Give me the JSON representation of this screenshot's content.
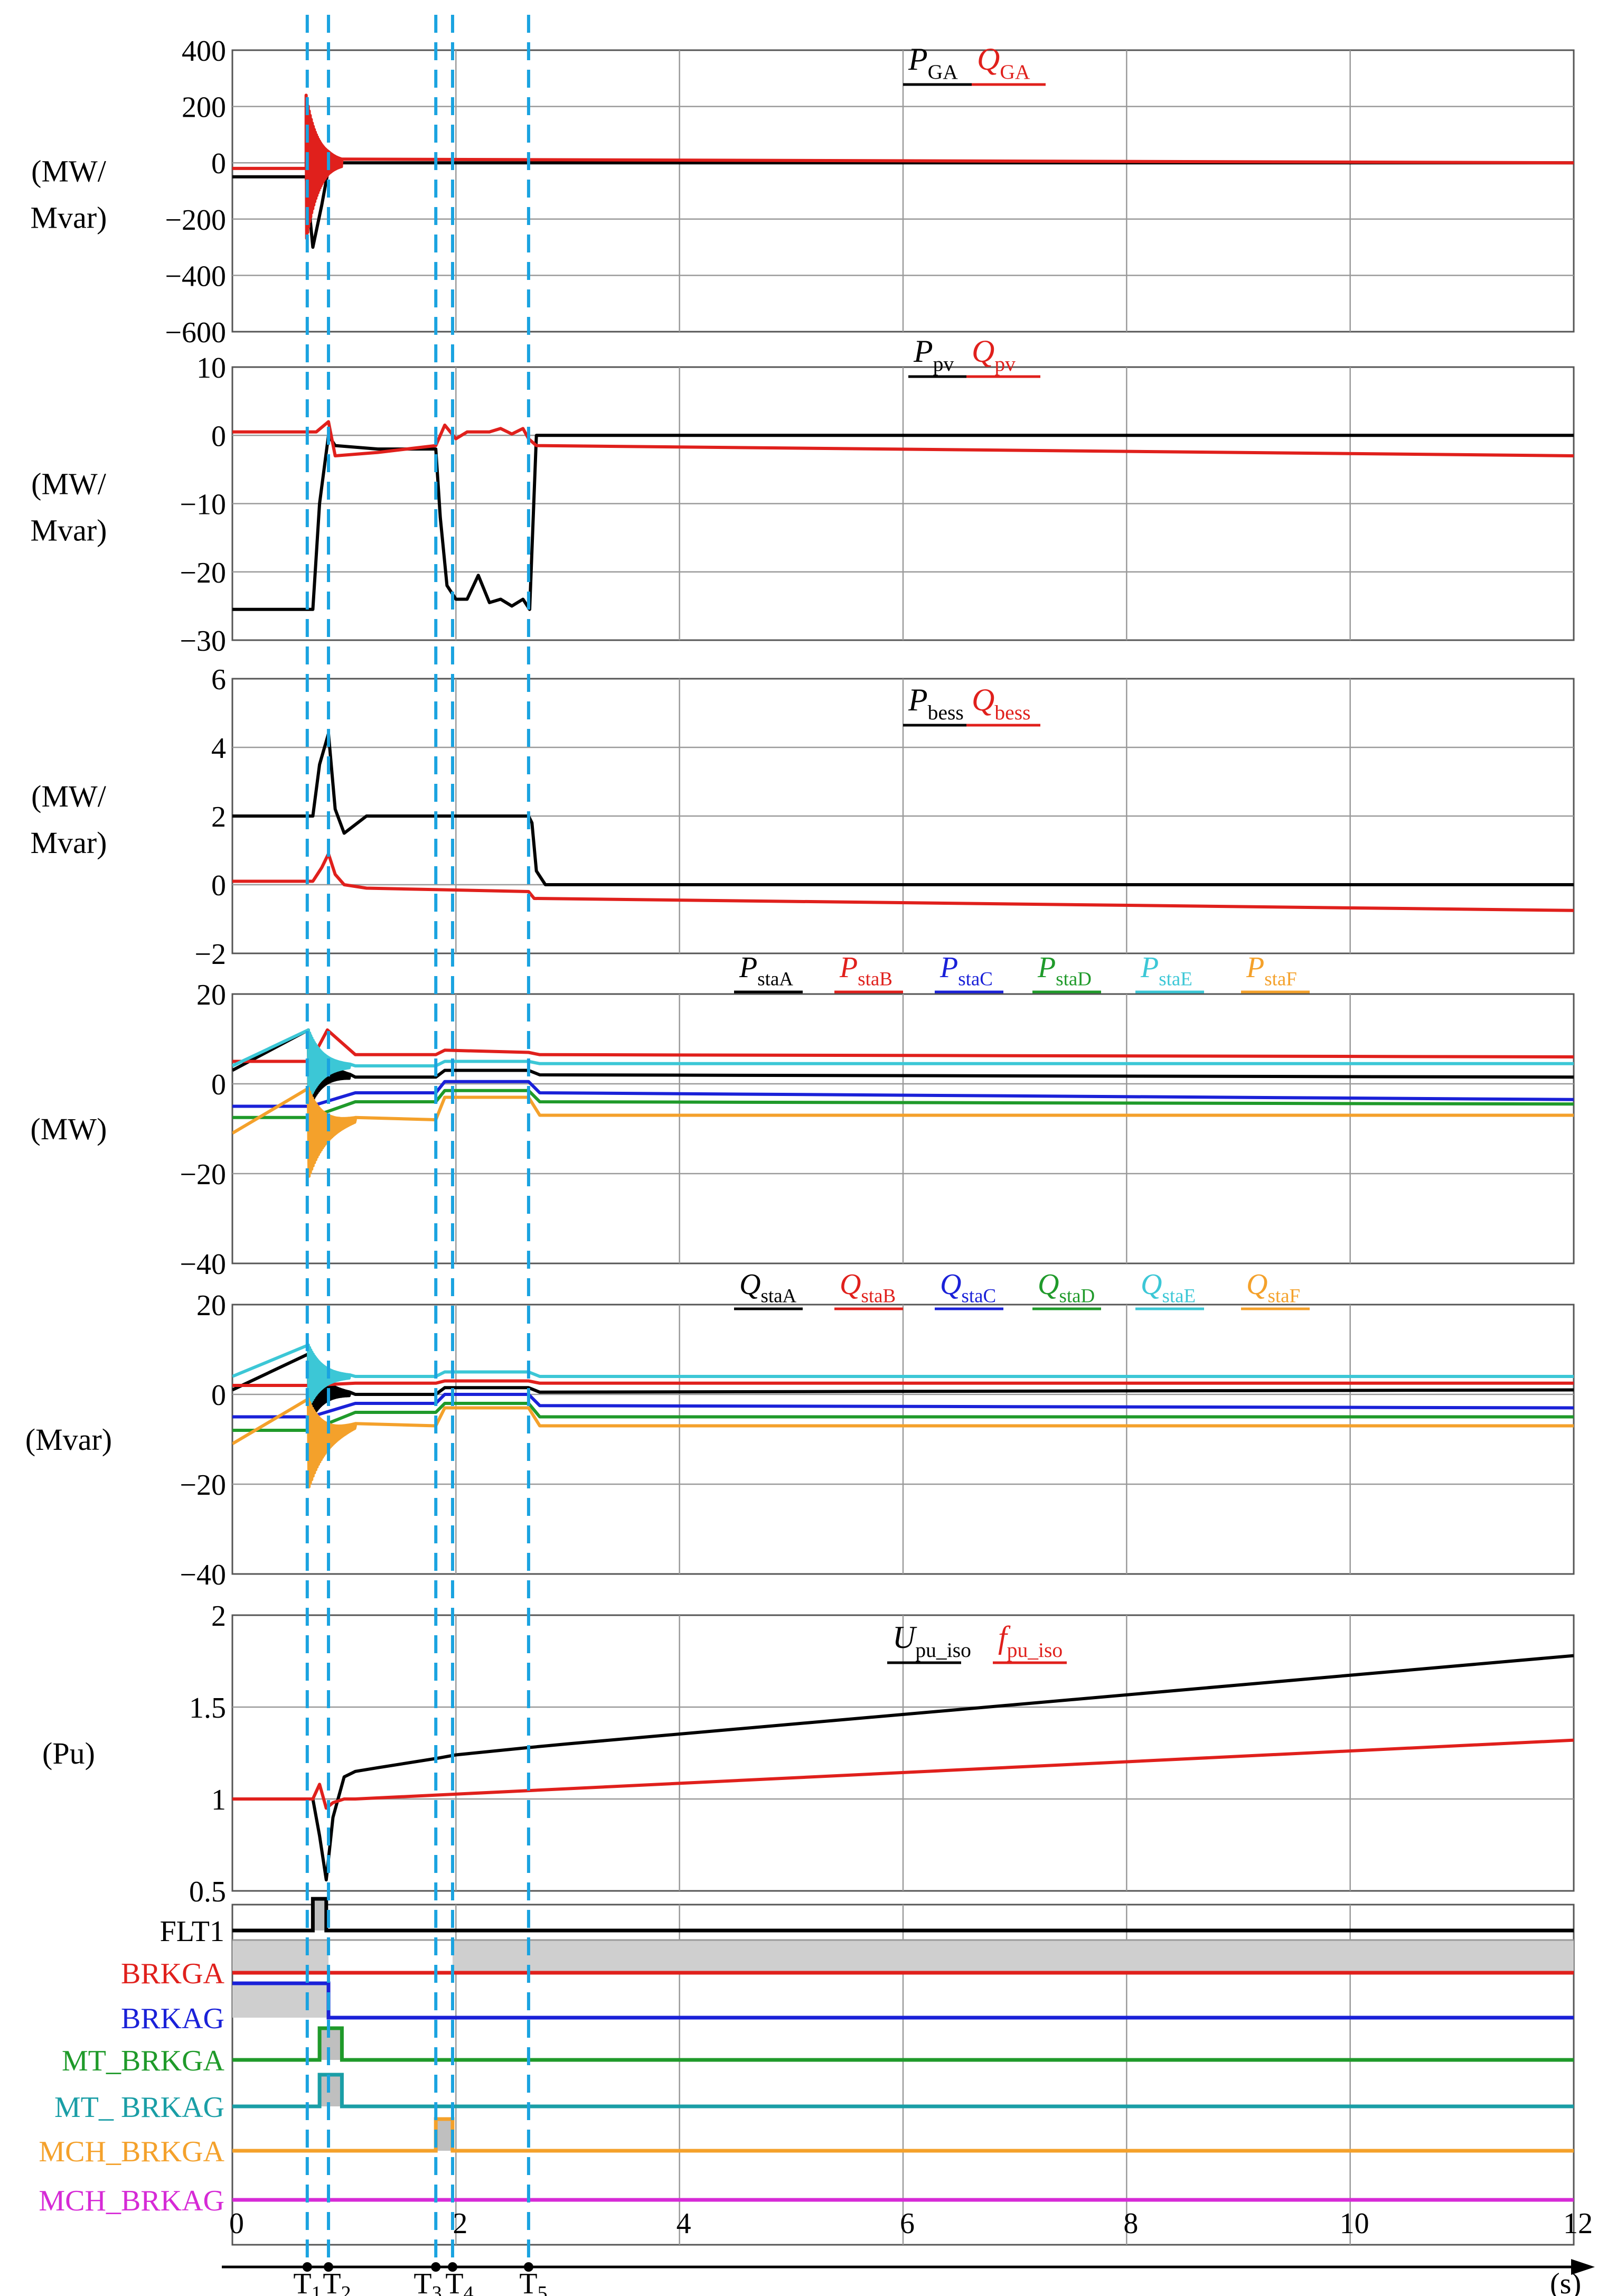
{
  "chart_data": {
    "type": "line",
    "x_axis": {
      "xlim": [
        0,
        12
      ],
      "ticks": [
        0,
        2,
        4,
        6,
        8,
        10,
        12
      ],
      "tick_labels": [
        "0",
        "2",
        "4",
        "6",
        "8",
        "10",
        "12"
      ],
      "unit_label": "(s)",
      "events": [
        {
          "name": "T1",
          "label": "T",
          "sub": "1",
          "x": 0.67
        },
        {
          "name": "T2",
          "label": "T",
          "sub": "2",
          "x": 0.86
        },
        {
          "name": "T3",
          "label": "T",
          "sub": "3",
          "x": 1.82
        },
        {
          "name": "T4",
          "label": "T",
          "sub": "4",
          "x": 1.97
        },
        {
          "name": "T5",
          "label": "T",
          "sub": "5",
          "x": 2.65
        }
      ]
    },
    "panels": [
      {
        "id": "grid-power",
        "ylabel": [
          "(MW/",
          "Mvar)"
        ],
        "ylim": [
          -600,
          400
        ],
        "yticks": [
          400,
          200,
          0,
          -200,
          -400,
          -600
        ],
        "ytick_labels": [
          "400",
          "200",
          "0",
          "−200",
          "−400",
          "−600"
        ],
        "series": [
          {
            "name": "P_GA",
            "label": "P",
            "sub": "GA",
            "italic": true,
            "color": "#000000",
            "x": [
              0,
              0.66,
              0.72,
              0.8,
              0.86,
              0.9,
              12
            ],
            "y": [
              -50,
              -50,
              -300,
              -150,
              -20,
              0,
              0
            ]
          },
          {
            "name": "Q_GA",
            "label": "Q",
            "sub": "GA",
            "italic": true,
            "color": "#e0201c",
            "x": [
              0,
              0.66,
              0.86,
              0.9,
              12
            ],
            "y": [
              -20,
              -20,
              0,
              0,
              0
            ],
            "osc": {
              "from": 0.66,
              "to": 0.98,
              "amp": 260
            }
          }
        ]
      },
      {
        "id": "pv-power",
        "ylabel": [
          "(MW/",
          "Mvar)"
        ],
        "ylim": [
          -30,
          10
        ],
        "yticks": [
          10,
          0,
          -10,
          -20,
          -30
        ],
        "ytick_labels": [
          "10",
          "0",
          "−10",
          "−20",
          "−30"
        ],
        "series": [
          {
            "name": "P_pv",
            "label": "P",
            "sub": "pv",
            "italic": true,
            "color": "#000000",
            "x": [
              0,
              0.72,
              0.78,
              0.86,
              0.92,
              1.3,
              1.82,
              1.86,
              1.92,
              2.0,
              2.1,
              2.2,
              2.3,
              2.4,
              2.5,
              2.6,
              2.66,
              2.72,
              12
            ],
            "y": [
              -25.5,
              -25.5,
              -10,
              0,
              -1.5,
              -2,
              -2,
              -12,
              -22,
              -24,
              -24,
              -20.5,
              -24.5,
              -24,
              -25,
              -24,
              -25.5,
              0,
              0
            ]
          },
          {
            "name": "Q_pv",
            "label": "Q",
            "sub": "pv",
            "italic": true,
            "color": "#e0201c",
            "x": [
              0,
              0.75,
              0.86,
              0.92,
              1.3,
              1.82,
              1.9,
              2.0,
              2.1,
              2.2,
              2.3,
              2.4,
              2.5,
              2.6,
              2.65,
              2.72,
              12
            ],
            "y": [
              0.5,
              0.5,
              2,
              -3,
              -2.5,
              -1.5,
              1.5,
              -0.5,
              0.5,
              0.5,
              0.5,
              1,
              0.2,
              1,
              -0.5,
              -1.5,
              -3
            ]
          }
        ]
      },
      {
        "id": "bess-power",
        "ylabel": [
          "(MW/",
          "Mvar)"
        ],
        "ylim": [
          -2,
          6
        ],
        "yticks": [
          6,
          4,
          2,
          0,
          -2
        ],
        "ytick_labels": [
          "6",
          "4",
          "2",
          "0",
          "−2"
        ],
        "series": [
          {
            "name": "P_bess",
            "label": "P",
            "sub": "bess",
            "italic": true,
            "color": "#000000",
            "x": [
              0,
              0.72,
              0.78,
              0.86,
              0.92,
              1.0,
              1.2,
              2.65,
              2.68,
              2.72,
              2.8,
              12
            ],
            "y": [
              2,
              2,
              3.5,
              4.4,
              2.2,
              1.5,
              2,
              2,
              1.8,
              0.4,
              0,
              0
            ]
          },
          {
            "name": "Q_bess",
            "label": "Q",
            "sub": "bess",
            "italic": true,
            "color": "#e0201c",
            "x": [
              0,
              0.72,
              0.8,
              0.86,
              0.92,
              1.0,
              1.2,
              2.65,
              2.7,
              12
            ],
            "y": [
              0.1,
              0.1,
              0.5,
              0.9,
              0.3,
              0,
              -0.1,
              -0.2,
              -0.4,
              -0.75
            ]
          }
        ]
      },
      {
        "id": "station-active-power",
        "ylabel": [
          "(MW)"
        ],
        "ylim": [
          -40,
          20
        ],
        "yticks": [
          20,
          0,
          -20,
          -40
        ],
        "ytick_labels": [
          "20",
          "0",
          "−20",
          "−40"
        ],
        "series": [
          {
            "name": "P_staA",
            "label": "P",
            "sub": "staA",
            "italic": true,
            "color": "#000000",
            "x": [
              0,
              0.7,
              1.1,
              1.82,
              1.9,
              2.65,
              2.75,
              12
            ],
            "y": [
              3,
              3,
              1.5,
              1.5,
              3,
              3,
              2,
              1.5
            ],
            "osc": {
              "from": 0.68,
              "to": 1.05,
              "amp": 9
            }
          },
          {
            "name": "P_staB",
            "label": "P",
            "sub": "staB",
            "italic": true,
            "color": "#e0201c",
            "x": [
              0,
              0.7,
              0.85,
              1.1,
              1.82,
              1.9,
              2.65,
              2.75,
              12
            ],
            "y": [
              5,
              5,
              12,
              6.5,
              6.5,
              7.5,
              7,
              6.5,
              6
            ]
          },
          {
            "name": "P_staC",
            "label": "P",
            "sub": "staC",
            "italic": true,
            "color": "#1a21d8",
            "x": [
              0,
              0.7,
              1.1,
              1.82,
              1.9,
              2.65,
              2.75,
              12
            ],
            "y": [
              -5,
              -5,
              -2,
              -2,
              0.5,
              0.5,
              -2,
              -3.5
            ]
          },
          {
            "name": "P_staD",
            "label": "P",
            "sub": "staD",
            "italic": true,
            "color": "#1f9a2a",
            "x": [
              0,
              0.7,
              1.1,
              1.82,
              1.9,
              2.65,
              2.75,
              12
            ],
            "y": [
              -7.5,
              -7.5,
              -4,
              -4,
              -1.5,
              -1.5,
              -4,
              -4.5
            ]
          },
          {
            "name": "P_staE",
            "label": "P",
            "sub": "staE",
            "italic": true,
            "color": "#3cc7d6",
            "x": [
              0,
              0.7,
              1.1,
              1.82,
              1.9,
              2.65,
              2.75,
              12
            ],
            "y": [
              4,
              4,
              4,
              4,
              5,
              5,
              4.5,
              4.5
            ],
            "osc": {
              "from": 0.68,
              "to": 1.05,
              "amp": 8
            }
          },
          {
            "name": "P_staF",
            "label": "P",
            "sub": "staF",
            "italic": true,
            "color": "#f4a12b",
            "x": [
              0,
              0.7,
              1.1,
              1.82,
              1.9,
              2.65,
              2.75,
              12
            ],
            "y": [
              -11,
              -11,
              -8,
              -8,
              -3,
              -3,
              -7,
              -7
            ],
            "osc": {
              "from": 0.68,
              "to": 1.1,
              "amp": 10
            }
          }
        ]
      },
      {
        "id": "station-reactive-power",
        "ylabel": [
          "(Mvar)"
        ],
        "ylim": [
          -40,
          20
        ],
        "yticks": [
          20,
          0,
          -20,
          -40
        ],
        "ytick_labels": [
          "20",
          "0",
          "−20",
          "−40"
        ],
        "series": [
          {
            "name": "Q_staA",
            "label": "Q",
            "sub": "staA",
            "italic": true,
            "color": "#000000",
            "x": [
              0,
              0.7,
              1.1,
              1.82,
              1.9,
              2.65,
              2.75,
              12
            ],
            "y": [
              1,
              1,
              0,
              0,
              1.5,
              1.5,
              0.5,
              1
            ],
            "osc": {
              "from": 0.68,
              "to": 1.05,
              "amp": 8
            }
          },
          {
            "name": "Q_staB",
            "label": "Q",
            "sub": "staB",
            "italic": true,
            "color": "#e0201c",
            "x": [
              0,
              0.7,
              1.1,
              1.82,
              1.9,
              2.65,
              2.75,
              12
            ],
            "y": [
              2,
              2,
              2.5,
              2.5,
              3,
              3,
              2.5,
              2.5
            ]
          },
          {
            "name": "Q_staC",
            "label": "Q",
            "sub": "staC",
            "italic": true,
            "color": "#1a21d8",
            "x": [
              0,
              0.7,
              1.1,
              1.82,
              1.9,
              2.65,
              2.75,
              12
            ],
            "y": [
              -5,
              -5,
              -2,
              -2,
              0,
              0,
              -2.5,
              -3
            ]
          },
          {
            "name": "Q_staD",
            "label": "Q",
            "sub": "staD",
            "italic": true,
            "color": "#1f9a2a",
            "x": [
              0,
              0.7,
              1.1,
              1.82,
              1.9,
              2.65,
              2.75,
              12
            ],
            "y": [
              -8,
              -8,
              -4,
              -4,
              -2,
              -2,
              -5,
              -5
            ]
          },
          {
            "name": "Q_staE",
            "label": "Q",
            "sub": "staE",
            "italic": true,
            "color": "#3cc7d6",
            "x": [
              0,
              0.7,
              1.1,
              1.82,
              1.9,
              2.65,
              2.75,
              12
            ],
            "y": [
              4,
              4,
              4,
              4,
              5,
              5,
              4,
              4
            ],
            "osc": {
              "from": 0.68,
              "to": 1.05,
              "amp": 7
            }
          },
          {
            "name": "Q_staF",
            "label": "Q",
            "sub": "staF",
            "italic": true,
            "color": "#f4a12b",
            "x": [
              0,
              0.7,
              1.1,
              1.82,
              1.9,
              2.65,
              2.75,
              12
            ],
            "y": [
              -11,
              -11,
              -7,
              -7,
              -3,
              -3,
              -7,
              -7
            ],
            "osc": {
              "from": 0.68,
              "to": 1.1,
              "amp": 10
            }
          }
        ]
      },
      {
        "id": "voltage-frequency",
        "ylabel": [
          "(Pu)"
        ],
        "ylim": [
          0.5,
          2
        ],
        "yticks": [
          2,
          1.5,
          1,
          0.5
        ],
        "ytick_labels": [
          "2",
          "1.5",
          "1",
          "0.5"
        ],
        "series": [
          {
            "name": "U_pu_iso",
            "label": "U",
            "sub": "pu_iso",
            "italic": true,
            "color": "#000000",
            "x": [
              0,
              0.72,
              0.78,
              0.84,
              0.9,
              1.0,
              1.1,
              1.3,
              1.82,
              2.0,
              2.65,
              3.0,
              12
            ],
            "y": [
              1,
              1,
              0.8,
              0.56,
              0.9,
              1.12,
              1.15,
              1.17,
              1.22,
              1.24,
              1.28,
              1.3,
              1.78
            ]
          },
          {
            "name": "f_pu_iso",
            "label": "f",
            "sub": "pu_iso",
            "italic": true,
            "color": "#e0201c",
            "x": [
              0,
              0.72,
              0.78,
              0.84,
              0.9,
              1.0,
              1.1,
              12
            ],
            "y": [
              1,
              1,
              1.08,
              0.95,
              0.98,
              1.0,
              1.0,
              1.32
            ]
          }
        ]
      }
    ],
    "breaker_panel": {
      "signals": [
        {
          "name": "FLT1",
          "color": "#000000",
          "high_from": 0.72,
          "high_to": 0.84
        },
        {
          "name": "BRKGA",
          "color": "#e0201c",
          "state": "closed-open-closed",
          "open_from": 0.86,
          "open_to": 1.97
        },
        {
          "name": "BRKAG",
          "color": "#1a21d8",
          "state": "closed-open",
          "open_from": 0.86
        },
        {
          "name": "MT_BRKGA",
          "color": "#1f9a2a",
          "high_from": 0.78,
          "high_to": 0.98
        },
        {
          "name": "MT_ BRKAG",
          "color": "#1a9ea6",
          "high_from": 0.78,
          "high_to": 0.98
        },
        {
          "name": "MCH_BRKGA",
          "color": "#f4a12b",
          "high_from": 1.82,
          "high_to": 1.97
        },
        {
          "name": "MCH_BRKAG",
          "color": "#d62ad6"
        }
      ]
    },
    "event_line_color": "#1aa3e0"
  }
}
